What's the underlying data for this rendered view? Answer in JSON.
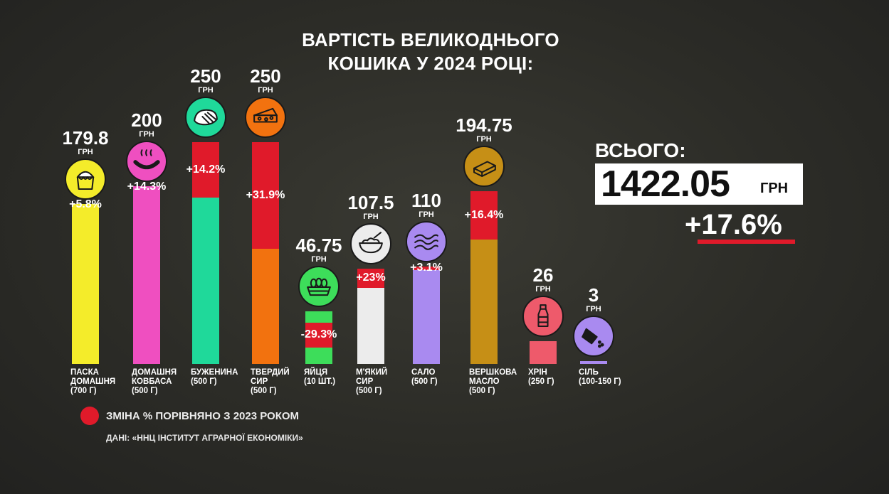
{
  "title": {
    "line1": "ВАРТІСТЬ ВЕЛИКОДНЬОГО",
    "line2": "КОШИКА У 2024 РОЦІ:"
  },
  "total": {
    "label": "ВСЬОГО:",
    "value": "1422.05",
    "unit": "ГРН",
    "change": "+17.6%"
  },
  "legend": {
    "change_label": "ЗМІНА % ПОРІВНЯНО З 2023 РОКОМ",
    "color": "#e01a2a"
  },
  "source": "ДАНІ: «ННЦ ІНСТИТУТ АГРАРНОЇ ЕКОНОМІКИ»",
  "chart_data": {
    "type": "bar",
    "unit_label": "ГРН",
    "categories": [
      "ПАСКА\nДОМАШНЯ\n(700 Г)",
      "ДОМАШНЯ\nКОВБАСА\n(500 Г)",
      "БУЖЕНИНА\n(500 Г)",
      "ТВЕРДИЙ\nСИР\n(500 Г)",
      "ЯЙЦЯ\n(10 ШТ.)",
      "М'ЯКИЙ\nСИР\n(500 Г)",
      "САЛО\n(500 Г)",
      "ВЕРШКОВА\nМАСЛО\n(500 Г)",
      "ХРІН\n(250 Г)",
      "СІЛЬ\n(100-150 Г)"
    ],
    "values": [
      179.8,
      200,
      250,
      250,
      46.75,
      107.5,
      110,
      194.75,
      26,
      3
    ],
    "value_labels": [
      "179.8",
      "200",
      "250",
      "250",
      "46.75",
      "107.5",
      "110",
      "194.75",
      "26",
      "3"
    ],
    "changes": [
      "+5.8%",
      "+14.3%",
      "+14.2%",
      "+31.9%",
      "-29.3%",
      "+23%",
      "+3.1%",
      "+16.4%",
      "",
      ""
    ],
    "change_values": [
      5.8,
      14.3,
      14.2,
      31.9,
      -29.3,
      23,
      3.1,
      16.4,
      null,
      null
    ],
    "colors": [
      "#f4ec2a",
      "#ef4fc0",
      "#1fd99a",
      "#f2720f",
      "#3ddd5a",
      "#ececec",
      "#a98af0",
      "#c68f16",
      "#ee5a6b",
      "#a98af0"
    ],
    "icons": [
      "easter-cake-icon",
      "sausage-icon",
      "ham-icon",
      "cheese-icon",
      "eggs-icon",
      "cottage-cheese-icon",
      "bacon-icon",
      "butter-icon",
      "horseradish-jar-icon",
      "salt-shaker-icon"
    ]
  }
}
